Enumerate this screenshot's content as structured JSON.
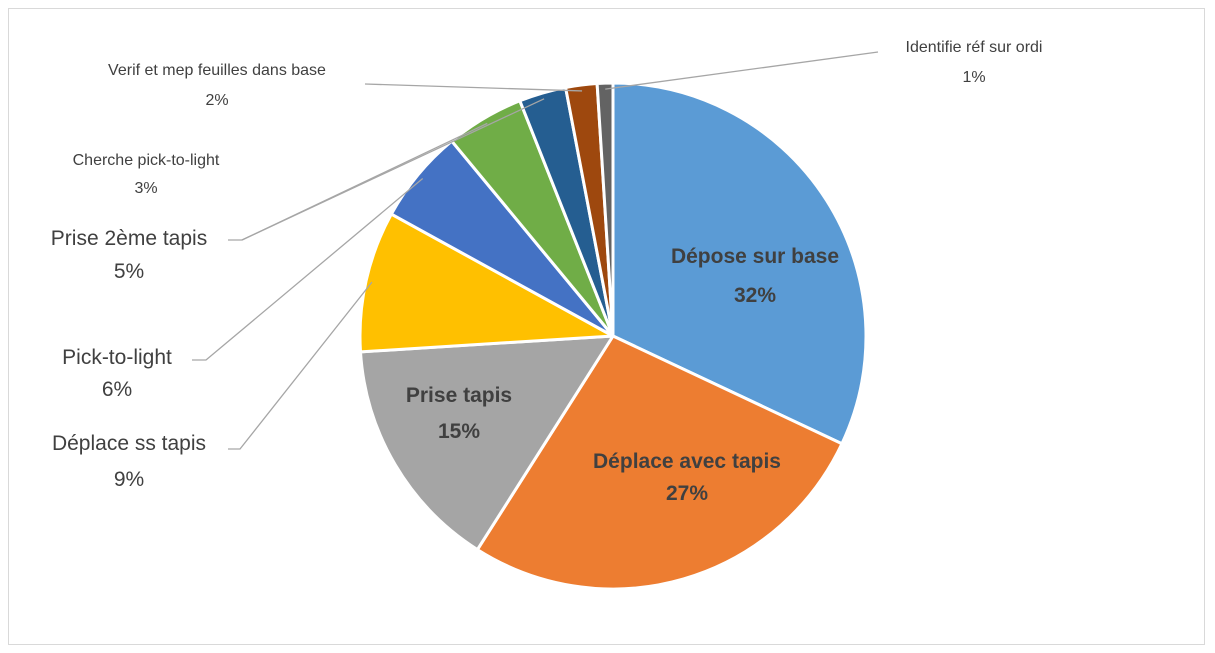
{
  "chart_data": {
    "type": "pie",
    "title": "",
    "slices": [
      {
        "label": "Dépose sur base",
        "value": 32,
        "pct_label": "32%",
        "color": "#5b9bd5"
      },
      {
        "label": "Déplace avec tapis",
        "value": 27,
        "pct_label": "27%",
        "color": "#ed7d31"
      },
      {
        "label": "Prise tapis",
        "value": 15,
        "pct_label": "15%",
        "color": "#a5a5a5"
      },
      {
        "label": "Déplace ss tapis",
        "value": 9,
        "pct_label": "9%",
        "color": "#ffc000"
      },
      {
        "label": "Pick-to-light",
        "value": 6,
        "pct_label": "6%",
        "color": "#4472c4"
      },
      {
        "label": "Prise 2ème tapis",
        "value": 5,
        "pct_label": "5%",
        "color": "#70ad47"
      },
      {
        "label": "Cherche pick-to-light",
        "value": 3,
        "pct_label": "3%",
        "color": "#255e91"
      },
      {
        "label": "Verif et mep feuilles dans base",
        "value": 2,
        "pct_label": "2%",
        "color": "#9e480e"
      },
      {
        "label": "Identifie réf sur ordi",
        "value": 1,
        "pct_label": "1%",
        "color": "#636363"
      }
    ],
    "legend": "none",
    "label_style": "data labels with leader lines"
  }
}
